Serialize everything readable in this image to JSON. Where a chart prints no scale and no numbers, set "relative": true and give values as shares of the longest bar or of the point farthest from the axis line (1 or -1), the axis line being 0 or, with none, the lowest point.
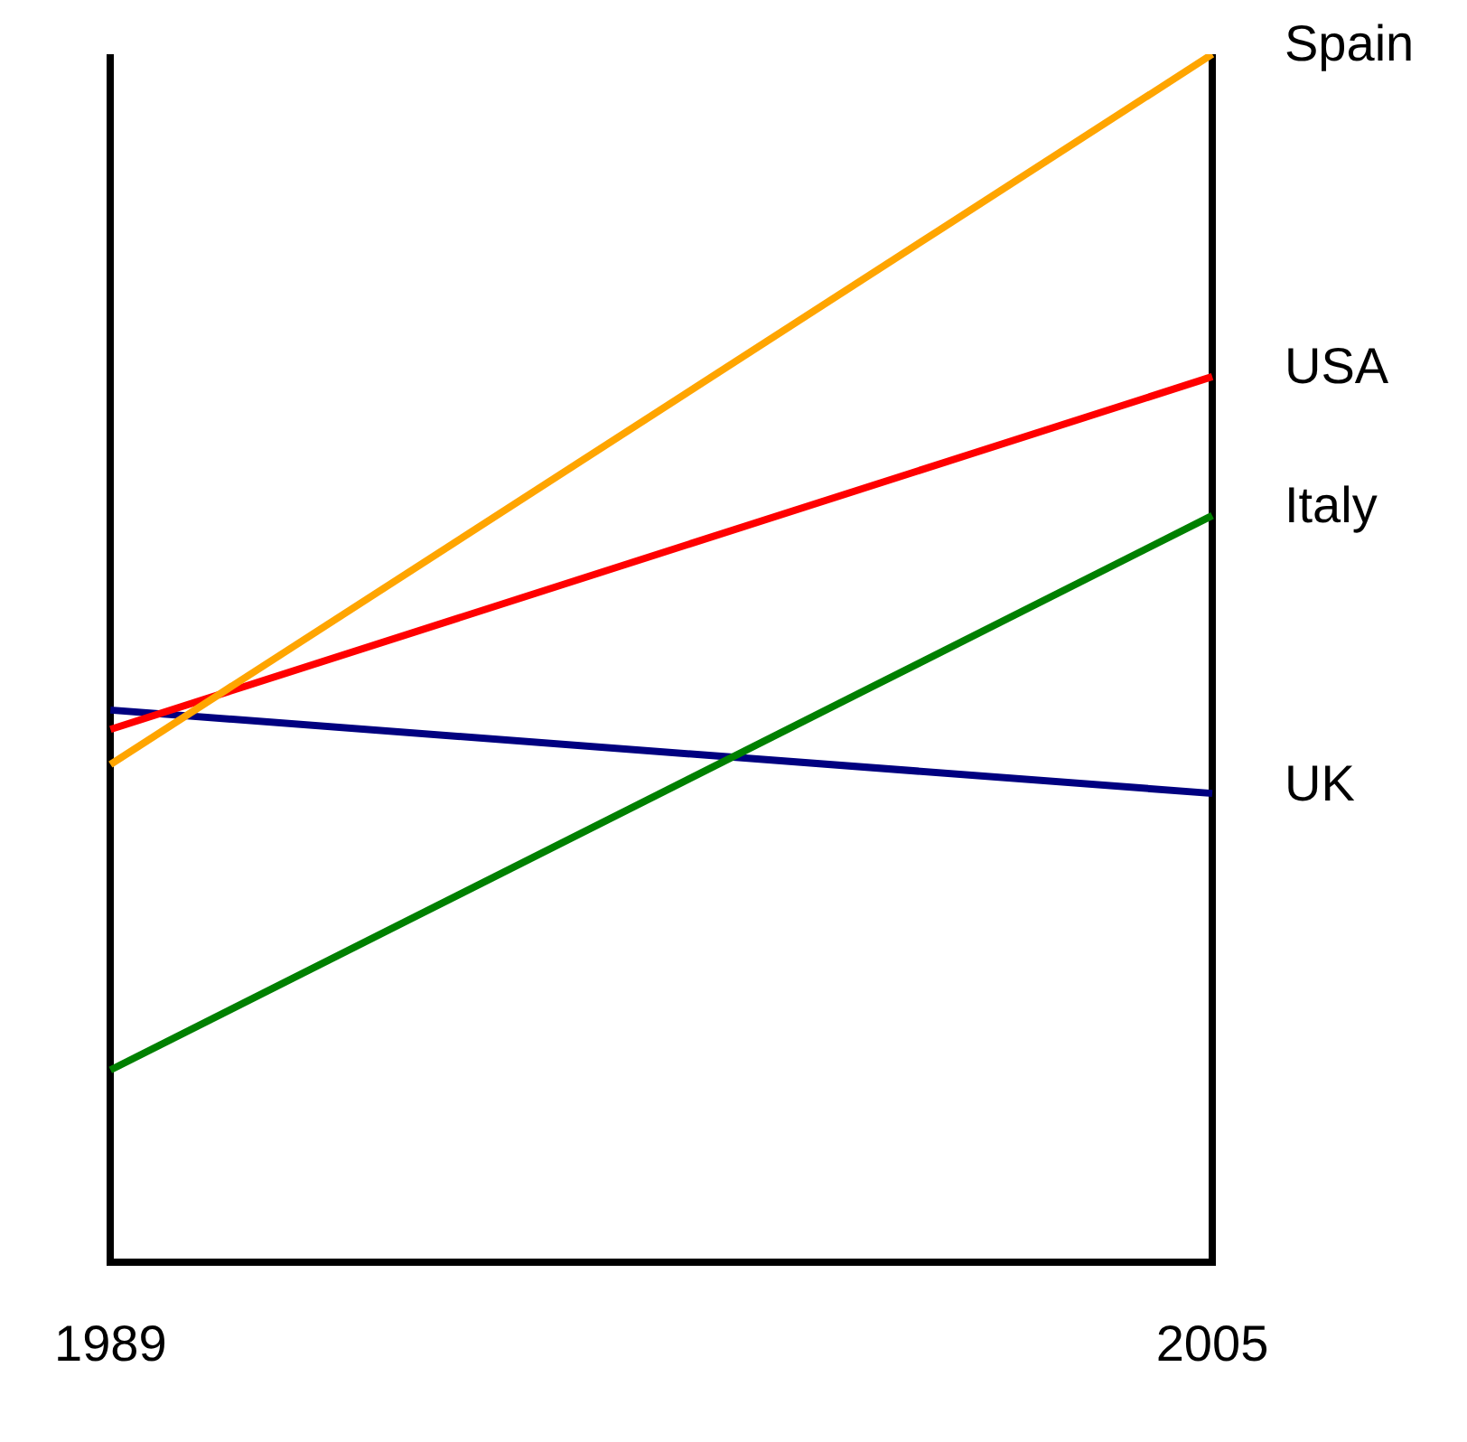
{
  "chart_data": {
    "type": "line",
    "relative": true,
    "categories": [
      "1989",
      "2005"
    ],
    "grid": "x",
    "legend": false,
    "marker": "none",
    "line_style": "solid",
    "series": [
      {
        "name": "Spain",
        "color": "#ffa500",
        "values": [
          0.412,
          1
        ]
      },
      {
        "name": "USA",
        "color": "#ff0000",
        "values": [
          0.441,
          0.733
        ]
      },
      {
        "name": "Italy",
        "color": "#008000",
        "values": [
          0.159,
          0.618
        ]
      },
      {
        "name": "UK",
        "color": "#000080",
        "values": [
          0.457,
          0.388
        ]
      }
    ]
  }
}
